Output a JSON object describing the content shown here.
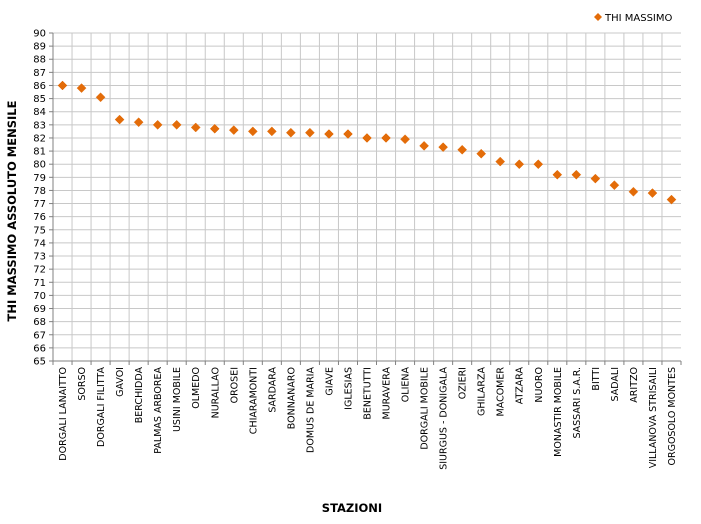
{
  "chart_data": {
    "type": "scatter",
    "xlabel": "STAZIONI",
    "ylabel": "THI MASSIMO ASSOLUTO MENSILE",
    "ylim": [
      65,
      90
    ],
    "ytick_step": 1,
    "grid": true,
    "legend_position": "top-right",
    "categories": [
      "DORGALI LANAITTO",
      "SORSO",
      "DORGALI FILITTA",
      "GAVOI",
      "BERCHIDDA",
      "PALMAS ARBOREA",
      "USINI MOBILE",
      "OLMEDO",
      "NURALLAO",
      "OROSEI",
      "CHIARAMONTI",
      "SARDARA",
      "BONNANARO",
      "DOMUS DE MARIA",
      "GIAVE",
      "IGLESIAS",
      "BENETUTTI",
      "MURAVERA",
      "OLIENA",
      "DORGALI MOBILE",
      "SIURGUS - DONIGALA",
      "OZIERI",
      "GHILARZA",
      "MACOMER",
      "ATZARA",
      "NUORO",
      "MONASTIR MOBILE",
      "SASSARI S.A.R.",
      "BITTI",
      "SADALI",
      "ARITZO",
      "VILLANOVA STRISAILI",
      "ORGOSOLO MONTES"
    ],
    "series": [
      {
        "name": "THI MASSIMO",
        "color": "#E36C09",
        "marker": "diamond",
        "values": [
          86.0,
          85.8,
          85.1,
          83.4,
          83.2,
          83.0,
          83.0,
          82.8,
          82.7,
          82.6,
          82.5,
          82.5,
          82.4,
          82.4,
          82.3,
          82.3,
          82.0,
          82.0,
          81.9,
          81.4,
          81.3,
          81.1,
          80.8,
          80.2,
          80.0,
          80.0,
          79.2,
          79.2,
          78.9,
          78.4,
          77.9,
          77.8,
          77.3
        ]
      }
    ]
  }
}
